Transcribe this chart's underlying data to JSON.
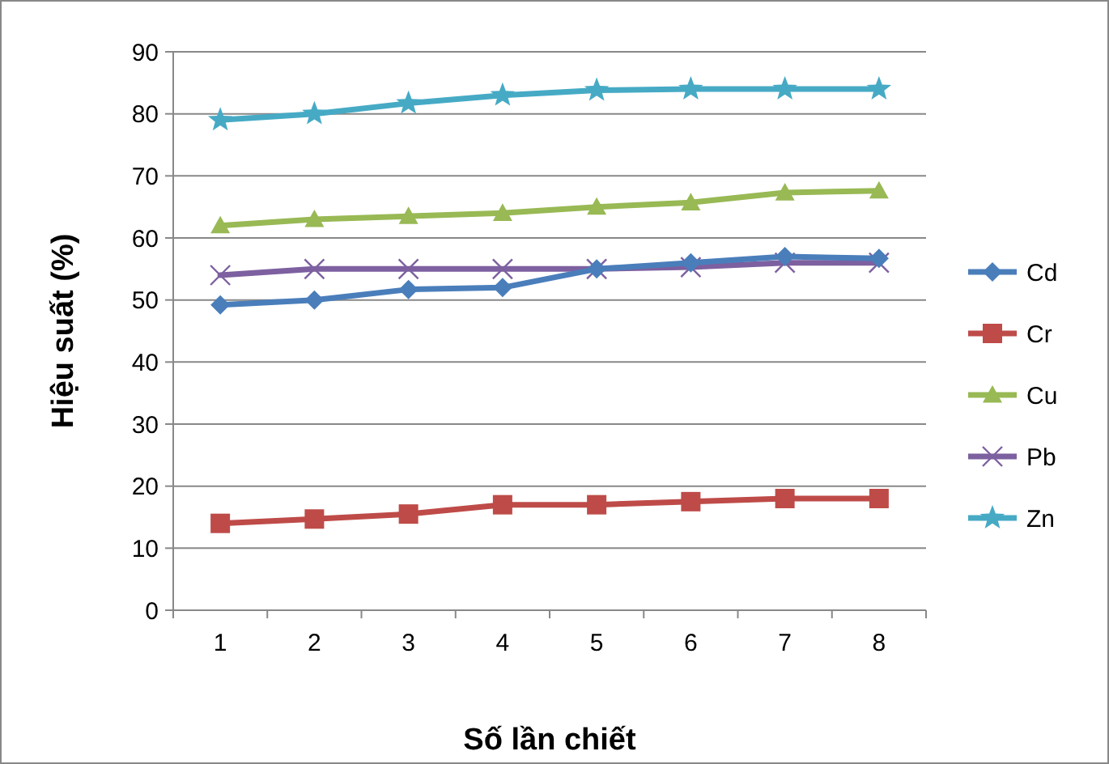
{
  "chart_data": {
    "type": "line",
    "xlabel": "Số lần chiết",
    "ylabel": "Hiệu suất (%)",
    "categories": [
      "1",
      "2",
      "3",
      "4",
      "5",
      "6",
      "7",
      "8"
    ],
    "ylim": [
      0,
      90
    ],
    "yticks": [
      0,
      10,
      20,
      30,
      40,
      50,
      60,
      70,
      80,
      90
    ],
    "grid": "y",
    "legend": "right",
    "series": [
      {
        "name": "Cd",
        "color": "#4a7ebb",
        "marker": "diamond",
        "values": [
          49.2,
          50,
          51.7,
          52,
          55,
          56,
          57,
          56.7
        ]
      },
      {
        "name": "Cr",
        "color": "#be4b48",
        "marker": "square",
        "values": [
          14,
          14.7,
          15.5,
          17,
          17,
          17.5,
          18,
          18
        ]
      },
      {
        "name": "Cu",
        "color": "#98b954",
        "marker": "triangle",
        "values": [
          62,
          63,
          63.5,
          64,
          65,
          65.7,
          67.3,
          67.6
        ]
      },
      {
        "name": "Pb",
        "color": "#7d60a0",
        "marker": "cross",
        "values": [
          54,
          55,
          55,
          55,
          55,
          55.3,
          56,
          56
        ]
      },
      {
        "name": "Zn",
        "color": "#46aac5",
        "marker": "star",
        "values": [
          79,
          80,
          81.7,
          83,
          83.8,
          84,
          84,
          84
        ]
      }
    ]
  }
}
